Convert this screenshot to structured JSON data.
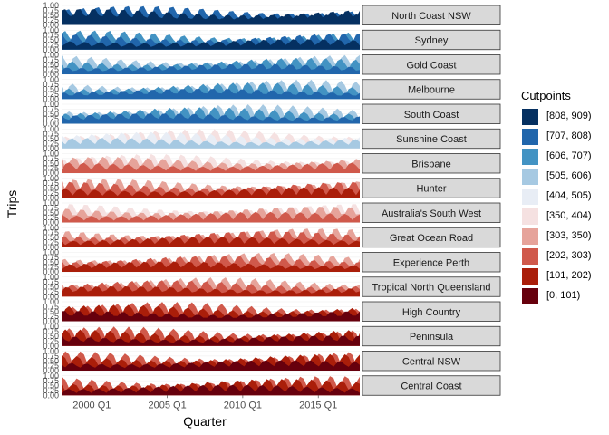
{
  "chart_data": {
    "type": "area",
    "xlabel": "Quarter",
    "ylabel": "Trips",
    "x_tick_labels": [
      "2000 Q1",
      "2005 Q1",
      "2010 Q1",
      "2015 Q1"
    ],
    "x_tick_years": [
      2000,
      2005,
      2010,
      2015
    ],
    "x_range": [
      1998,
      2017.75
    ],
    "y_ticks": [
      "0.00",
      "0.25",
      "0.50",
      "0.75",
      "1.00"
    ],
    "y_range": [
      0,
      1
    ],
    "grid": true,
    "legend_position": "right",
    "legend_title": "Cutpoints",
    "legend": [
      {
        "label": "[808, 909)",
        "color": "#053061"
      },
      {
        "label": "[707, 808)",
        "color": "#2166AC"
      },
      {
        "label": "[606, 707)",
        "color": "#4393C3"
      },
      {
        "label": "[505, 606)",
        "color": "#A6C9E2"
      },
      {
        "label": "[404, 505)",
        "color": "#E8EDF5"
      },
      {
        "label": "[350, 404)",
        "color": "#F5E1E1"
      },
      {
        "label": "[303, 350)",
        "color": "#E6A39A"
      },
      {
        "label": "[202, 303)",
        "color": "#D0594B"
      },
      {
        "label": "[101, 202)",
        "color": "#AA1E0A"
      },
      {
        "label": "[0, 101)",
        "color": "#67000D"
      }
    ],
    "regions": [
      {
        "name": "North Coast NSW",
        "level": 906
      },
      {
        "name": "Sydney",
        "level": 780
      },
      {
        "name": "Gold Coast",
        "level": 650
      },
      {
        "name": "Melbourne",
        "level": 640
      },
      {
        "name": "South Coast",
        "level": 660
      },
      {
        "name": "Sunshine Coast",
        "level": 440
      },
      {
        "name": "Brisbane",
        "level": 330
      },
      {
        "name": "Hunter",
        "level": 300
      },
      {
        "name": "Australia's South West",
        "level": 310
      },
      {
        "name": "Great Ocean Road",
        "level": 295
      },
      {
        "name": "Experience Perth",
        "level": 260
      },
      {
        "name": "Tropical North Queensland",
        "level": 225
      },
      {
        "name": "High Country",
        "level": 200
      },
      {
        "name": "Peninsula",
        "level": 190
      },
      {
        "name": "Central NSW",
        "level": 175
      },
      {
        "name": "Central Coast",
        "level": 150
      }
    ]
  }
}
